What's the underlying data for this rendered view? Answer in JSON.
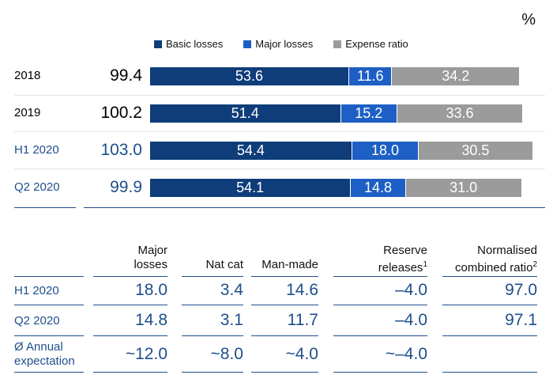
{
  "unit": "%",
  "legend": [
    {
      "label": "Basic losses",
      "color": "#0f3d7a"
    },
    {
      "label": "Major losses",
      "color": "#1d5fc4"
    },
    {
      "label": "Expense ratio",
      "color": "#9b9b9b"
    }
  ],
  "chart_data": {
    "type": "bar",
    "orientation": "horizontal",
    "stacked": true,
    "categories": [
      "2018",
      "2019",
      "H1 2020",
      "Q2 2020"
    ],
    "totals": [
      "99.4",
      "100.2",
      "103.0",
      "99.9"
    ],
    "series": [
      {
        "name": "Basic losses",
        "values": [
          53.6,
          51.4,
          54.4,
          54.1
        ],
        "color": "#0f3d7a"
      },
      {
        "name": "Major losses",
        "values": [
          11.6,
          15.2,
          18.0,
          14.8
        ],
        "color": "#1d5fc4"
      },
      {
        "name": "Expense ratio",
        "values": [
          34.2,
          33.6,
          30.5,
          31.0
        ],
        "color": "#9b9b9b"
      }
    ],
    "value_labels": [
      [
        "53.6",
        "11.6",
        "34.2"
      ],
      [
        "51.4",
        "15.2",
        "33.6"
      ],
      [
        "54.4",
        "18.0",
        "30.5"
      ],
      [
        "54.1",
        "14.8",
        "31.0"
      ]
    ]
  },
  "table": {
    "headers": [
      {
        "lines": [
          "Major",
          "losses"
        ]
      },
      {
        "lines": [
          "Nat cat"
        ]
      },
      {
        "lines": [
          "Man-made"
        ]
      },
      {
        "lines": [
          "Reserve",
          "releases"
        ],
        "sup": "1"
      },
      {
        "lines": [
          "Normalised",
          "combined ratio"
        ],
        "sup": "2"
      }
    ],
    "rows": [
      {
        "label": [
          "H1 2020"
        ],
        "values": [
          "18.0",
          "3.4",
          "14.6",
          "–4.0",
          "97.0"
        ]
      },
      {
        "label": [
          "Q2 2020"
        ],
        "values": [
          "14.8",
          "3.1",
          "11.7",
          "–4.0",
          "97.1"
        ]
      },
      {
        "label": [
          "Ø Annual",
          "expectation"
        ],
        "values": [
          "~12.0",
          "~8.0",
          "~4.0",
          "~–4.0",
          ""
        ]
      }
    ]
  }
}
